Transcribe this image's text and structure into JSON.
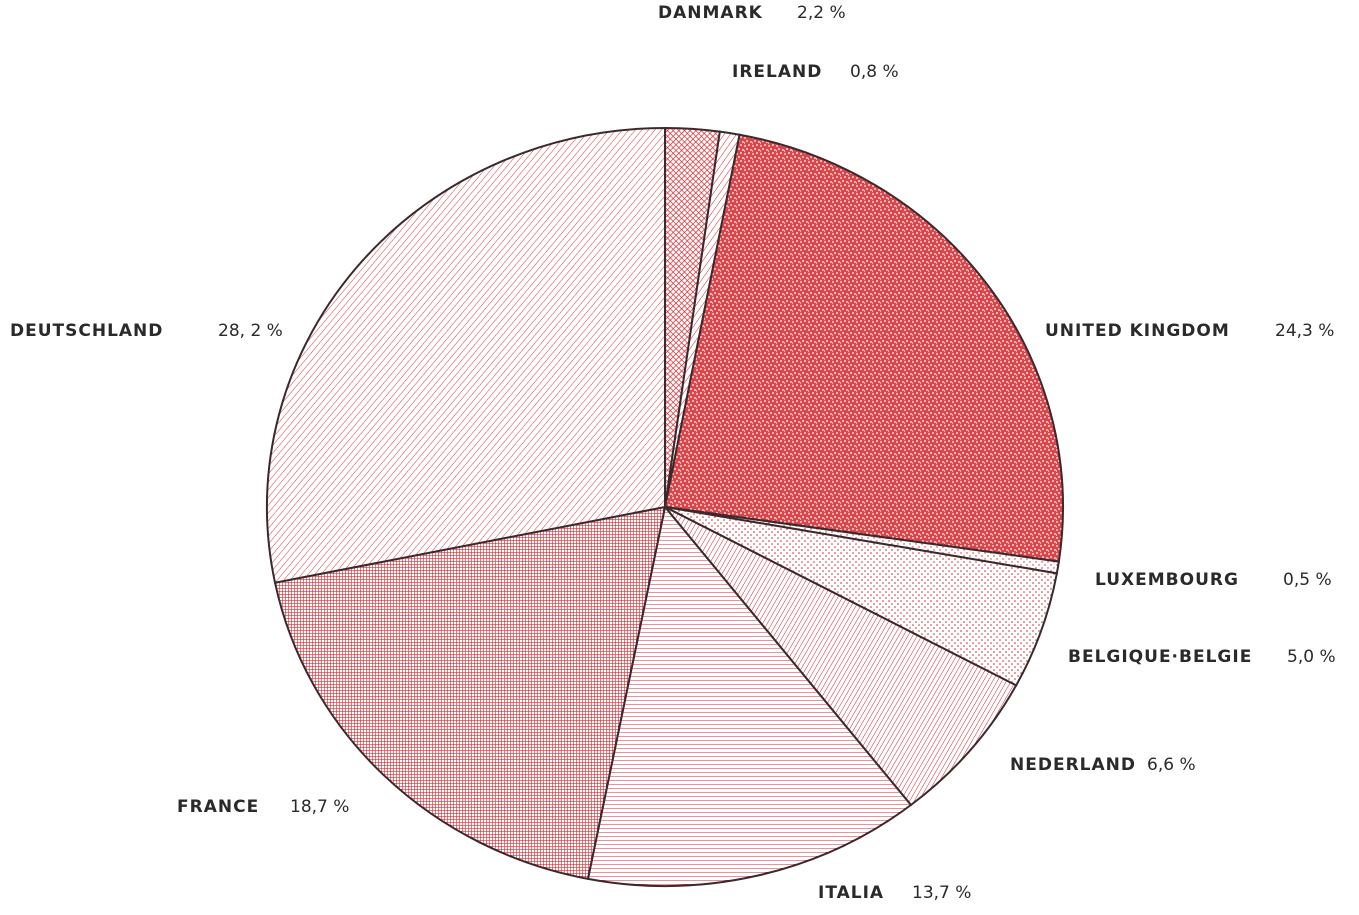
{
  "chart_data": {
    "type": "pie",
    "color": "#d6262c",
    "categories": [
      "DANMARK",
      "IRELAND",
      "UNITED KINGDOM",
      "LUXEMBOURG",
      "BELGIQUE·BELGIE",
      "NEDERLAND",
      "ITALIA",
      "FRANCE",
      "DEUTSCHLAND"
    ],
    "values": [
      2.2,
      0.8,
      24.3,
      0.5,
      5.0,
      6.6,
      13.7,
      18.7,
      28.2
    ],
    "value_labels": [
      "2,2 %",
      "0,8 %",
      "24,3 %",
      "0,5 %",
      "5,0 %",
      "6,6 %",
      "13,7 %",
      "18,7 %",
      "28, 2 %"
    ]
  }
}
